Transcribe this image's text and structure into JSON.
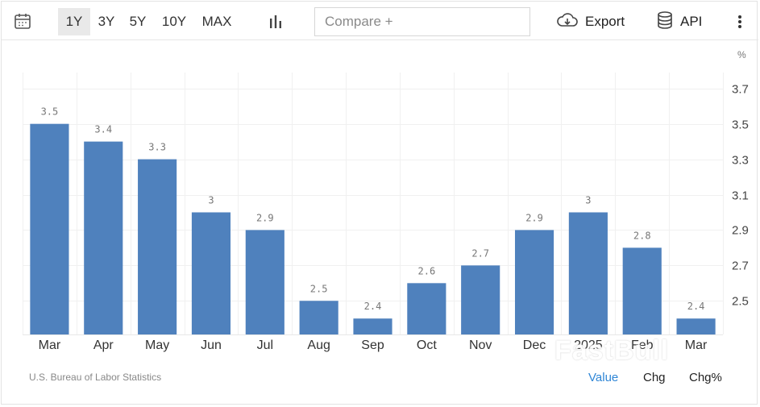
{
  "toolbar": {
    "calendar_icon": "calendar-icon",
    "ranges": [
      "1Y",
      "3Y",
      "5Y",
      "10Y",
      "MAX"
    ],
    "active_range": "1Y",
    "chart_type_icon": "bar-chart-icon",
    "compare_placeholder": "Compare +",
    "export_label": "Export",
    "export_icon": "cloud-download-icon",
    "api_label": "API",
    "api_icon": "database-icon",
    "more_icon": "more-vertical-icon"
  },
  "chart_data": {
    "type": "bar",
    "categories": [
      "Mar",
      "Apr",
      "May",
      "Jun",
      "Jul",
      "Aug",
      "Sep",
      "Oct",
      "Nov",
      "Dec",
      "2025",
      "Feb",
      "Mar"
    ],
    "values": [
      3.5,
      3.4,
      3.3,
      3.0,
      2.9,
      2.5,
      2.4,
      2.6,
      2.7,
      2.9,
      3.0,
      2.8,
      2.4
    ],
    "data_labels": [
      "3.5",
      "3.4",
      "3.3",
      "3",
      "2.9",
      "2.5",
      "2.4",
      "2.6",
      "2.7",
      "2.9",
      "3",
      "2.8",
      "2.4"
    ],
    "y_unit": "%",
    "y_ticks": [
      "3.7",
      "3.5",
      "3.3",
      "3.1",
      "2.9",
      "2.7",
      "2.5"
    ],
    "ylim": [
      2.31,
      3.79
    ],
    "y_axis_side": "right",
    "grid": true,
    "bar_color": "#4f81bd"
  },
  "footer": {
    "source": "U.S. Bureau of Labor Statistics",
    "modes": [
      "Value",
      "Chg",
      "Chg%"
    ],
    "active_mode": "Value",
    "watermark": "FastBull"
  }
}
